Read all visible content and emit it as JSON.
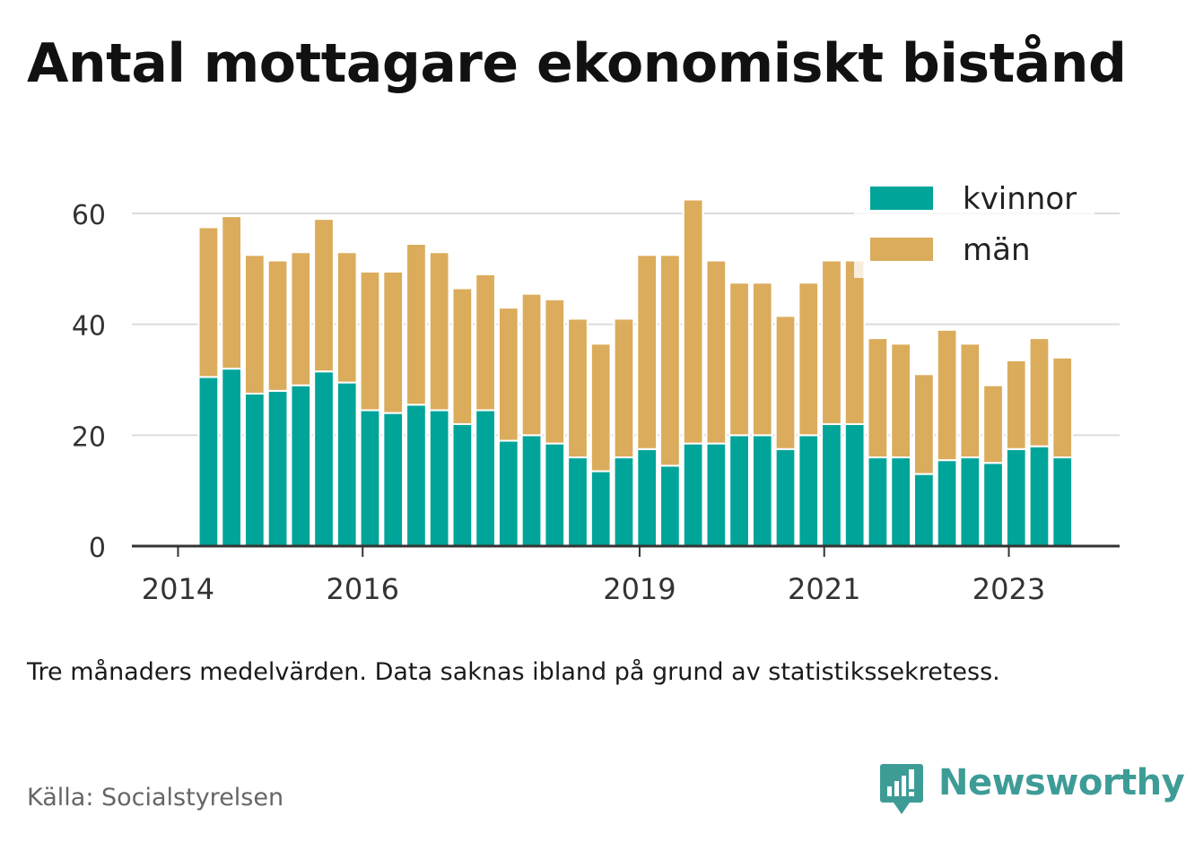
{
  "title": "Antal mottagare ekonomiskt bistånd",
  "note": "Tre månaders medelvärden. Data saknas ibland på grund av statistikssekretess.",
  "source": "Källa: Socialstyrelsen",
  "brand": {
    "name": "Newsworthy",
    "color": "#3e9c97"
  },
  "chart_data": {
    "type": "bar",
    "stacked": true,
    "title": "Antal mottagare ekonomiskt bistånd",
    "xlabel": "",
    "ylabel": "",
    "ylim": [
      0,
      65
    ],
    "yticks": [
      0,
      20,
      40,
      60
    ],
    "xticks": [
      {
        "label": "2014",
        "x": 2014.0
      },
      {
        "label": "2016",
        "x": 2016.0
      },
      {
        "label": "2019",
        "x": 2019.0
      },
      {
        "label": "2021",
        "x": 2021.0
      },
      {
        "label": "2023",
        "x": 2023.0
      }
    ],
    "xlim": [
      2013.5,
      2024.2
    ],
    "grid": true,
    "legend": "top-right",
    "x": [
      2014.33,
      2014.58,
      2014.83,
      2015.08,
      2015.33,
      2015.58,
      2015.83,
      2016.08,
      2016.33,
      2016.58,
      2016.83,
      2017.08,
      2017.33,
      2017.58,
      2017.83,
      2018.08,
      2018.33,
      2018.58,
      2018.83,
      2019.08,
      2019.33,
      2019.58,
      2019.83,
      2020.08,
      2020.33,
      2020.58,
      2020.83,
      2021.08,
      2021.33,
      2021.58,
      2021.83,
      2022.08,
      2022.33,
      2022.58,
      2022.83,
      2023.08,
      2023.33,
      2023.58
    ],
    "series": [
      {
        "name": "kvinnor",
        "color": "#00a499",
        "values": [
          30.5,
          32,
          27.5,
          28,
          29,
          31.5,
          29.5,
          24.5,
          24,
          25.5,
          24.5,
          22,
          24.5,
          19,
          20,
          18.5,
          16,
          13.5,
          16,
          17.5,
          14.5,
          18.5,
          18.5,
          20,
          20,
          17.5,
          20,
          22,
          22,
          16,
          16,
          13,
          15.5,
          16,
          15,
          17.5,
          18,
          16
        ]
      },
      {
        "name": "män",
        "color": "#dbac5c",
        "values": [
          27,
          27.5,
          25,
          23.5,
          24,
          27.5,
          23.5,
          25,
          25.5,
          29,
          28.5,
          24.5,
          24.5,
          24,
          25.5,
          26,
          25,
          23,
          25,
          35,
          38,
          44,
          33,
          27.5,
          27.5,
          24,
          27.5,
          29.5,
          29.5,
          21.5,
          20.5,
          18,
          23.5,
          20.5,
          14,
          16,
          19.5,
          18
        ]
      }
    ]
  }
}
